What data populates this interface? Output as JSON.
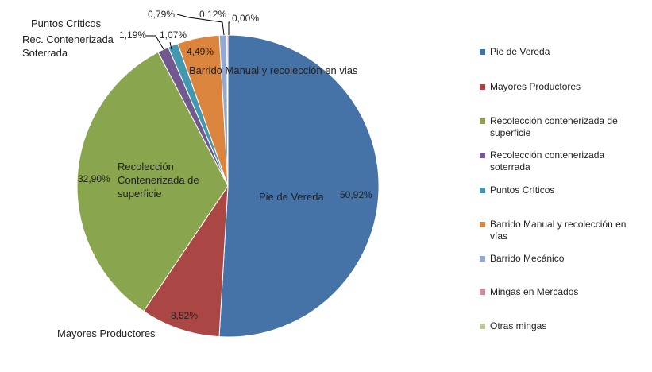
{
  "chart_data": {
    "type": "pie",
    "categories": [
      "Pie de Vereda",
      "Mayores Productores",
      "Recolección contenerizada de superficie",
      "Recolección  contenerizada soterrada",
      "Puntos Críticos",
      "Barrido Manual y recolección en vías",
      "Barrido Mecánico",
      "Mingas en Mercados",
      "Otras mingas"
    ],
    "values": [
      50.92,
      8.52,
      32.9,
      1.19,
      1.07,
      4.49,
      0.79,
      0.12,
      0.0
    ],
    "value_labels": [
      "50,92%",
      "8,52%",
      "32,90%",
      "1,19%",
      "1,07%",
      "4,49%",
      "0,79%",
      "0,12%",
      "0,00%"
    ],
    "colors": [
      "#4572A7",
      "#AA4643",
      "#89A54E",
      "#71588F",
      "#4198AF",
      "#DB843D",
      "#93A9CF",
      "#D19392",
      "#B9CD96"
    ],
    "legend_position": "right",
    "annotations": {
      "pie_de_vereda": "Pie de Vereda",
      "mayores": "Mayores Productores",
      "superficie": [
        "Recolección",
        "Contenerizada de",
        "superficie"
      ],
      "soterrada": [
        "Rec. Contenerizada",
        "Soterrada"
      ],
      "puntos": "Puntos Críticos",
      "barrido": "Barrido Manual y recolección en vias"
    }
  }
}
